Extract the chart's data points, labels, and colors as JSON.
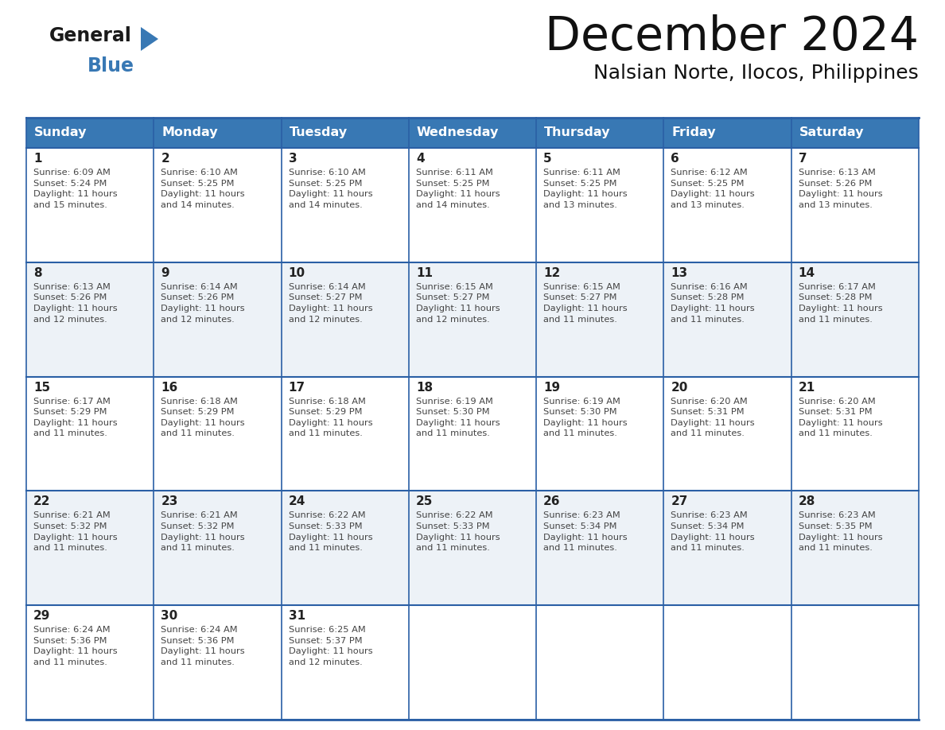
{
  "title": "December 2024",
  "subtitle": "Nalsian Norte, Ilocos, Philippines",
  "header_bg": "#3878b4",
  "header_text": "#ffffff",
  "days_of_week": [
    "Sunday",
    "Monday",
    "Tuesday",
    "Wednesday",
    "Thursday",
    "Friday",
    "Saturday"
  ],
  "weeks": [
    [
      {
        "day": 1,
        "sunrise": "6:09 AM",
        "sunset": "5:24 PM",
        "daylight": "11 hours and 15 minutes."
      },
      {
        "day": 2,
        "sunrise": "6:10 AM",
        "sunset": "5:25 PM",
        "daylight": "11 hours and 14 minutes."
      },
      {
        "day": 3,
        "sunrise": "6:10 AM",
        "sunset": "5:25 PM",
        "daylight": "11 hours and 14 minutes."
      },
      {
        "day": 4,
        "sunrise": "6:11 AM",
        "sunset": "5:25 PM",
        "daylight": "11 hours and 14 minutes."
      },
      {
        "day": 5,
        "sunrise": "6:11 AM",
        "sunset": "5:25 PM",
        "daylight": "11 hours and 13 minutes."
      },
      {
        "day": 6,
        "sunrise": "6:12 AM",
        "sunset": "5:25 PM",
        "daylight": "11 hours and 13 minutes."
      },
      {
        "day": 7,
        "sunrise": "6:13 AM",
        "sunset": "5:26 PM",
        "daylight": "11 hours and 13 minutes."
      }
    ],
    [
      {
        "day": 8,
        "sunrise": "6:13 AM",
        "sunset": "5:26 PM",
        "daylight": "11 hours and 12 minutes."
      },
      {
        "day": 9,
        "sunrise": "6:14 AM",
        "sunset": "5:26 PM",
        "daylight": "11 hours and 12 minutes."
      },
      {
        "day": 10,
        "sunrise": "6:14 AM",
        "sunset": "5:27 PM",
        "daylight": "11 hours and 12 minutes."
      },
      {
        "day": 11,
        "sunrise": "6:15 AM",
        "sunset": "5:27 PM",
        "daylight": "11 hours and 12 minutes."
      },
      {
        "day": 12,
        "sunrise": "6:15 AM",
        "sunset": "5:27 PM",
        "daylight": "11 hours and 11 minutes."
      },
      {
        "day": 13,
        "sunrise": "6:16 AM",
        "sunset": "5:28 PM",
        "daylight": "11 hours and 11 minutes."
      },
      {
        "day": 14,
        "sunrise": "6:17 AM",
        "sunset": "5:28 PM",
        "daylight": "11 hours and 11 minutes."
      }
    ],
    [
      {
        "day": 15,
        "sunrise": "6:17 AM",
        "sunset": "5:29 PM",
        "daylight": "11 hours and 11 minutes."
      },
      {
        "day": 16,
        "sunrise": "6:18 AM",
        "sunset": "5:29 PM",
        "daylight": "11 hours and 11 minutes."
      },
      {
        "day": 17,
        "sunrise": "6:18 AM",
        "sunset": "5:29 PM",
        "daylight": "11 hours and 11 minutes."
      },
      {
        "day": 18,
        "sunrise": "6:19 AM",
        "sunset": "5:30 PM",
        "daylight": "11 hours and 11 minutes."
      },
      {
        "day": 19,
        "sunrise": "6:19 AM",
        "sunset": "5:30 PM",
        "daylight": "11 hours and 11 minutes."
      },
      {
        "day": 20,
        "sunrise": "6:20 AM",
        "sunset": "5:31 PM",
        "daylight": "11 hours and 11 minutes."
      },
      {
        "day": 21,
        "sunrise": "6:20 AM",
        "sunset": "5:31 PM",
        "daylight": "11 hours and 11 minutes."
      }
    ],
    [
      {
        "day": 22,
        "sunrise": "6:21 AM",
        "sunset": "5:32 PM",
        "daylight": "11 hours and 11 minutes."
      },
      {
        "day": 23,
        "sunrise": "6:21 AM",
        "sunset": "5:32 PM",
        "daylight": "11 hours and 11 minutes."
      },
      {
        "day": 24,
        "sunrise": "6:22 AM",
        "sunset": "5:33 PM",
        "daylight": "11 hours and 11 minutes."
      },
      {
        "day": 25,
        "sunrise": "6:22 AM",
        "sunset": "5:33 PM",
        "daylight": "11 hours and 11 minutes."
      },
      {
        "day": 26,
        "sunrise": "6:23 AM",
        "sunset": "5:34 PM",
        "daylight": "11 hours and 11 minutes."
      },
      {
        "day": 27,
        "sunrise": "6:23 AM",
        "sunset": "5:34 PM",
        "daylight": "11 hours and 11 minutes."
      },
      {
        "day": 28,
        "sunrise": "6:23 AM",
        "sunset": "5:35 PM",
        "daylight": "11 hours and 11 minutes."
      }
    ],
    [
      {
        "day": 29,
        "sunrise": "6:24 AM",
        "sunset": "5:36 PM",
        "daylight": "11 hours and 11 minutes."
      },
      {
        "day": 30,
        "sunrise": "6:24 AM",
        "sunset": "5:36 PM",
        "daylight": "11 hours and 11 minutes."
      },
      {
        "day": 31,
        "sunrise": "6:25 AM",
        "sunset": "5:37 PM",
        "daylight": "11 hours and 12 minutes."
      },
      null,
      null,
      null,
      null
    ]
  ],
  "cell_bg_even": "#ffffff",
  "cell_bg_odd": "#edf2f7",
  "border_color": "#2a5fa5",
  "day_num_color": "#222222",
  "text_color": "#444444",
  "logo_general_color": "#1a1a1a",
  "logo_blue_color": "#3878b4"
}
